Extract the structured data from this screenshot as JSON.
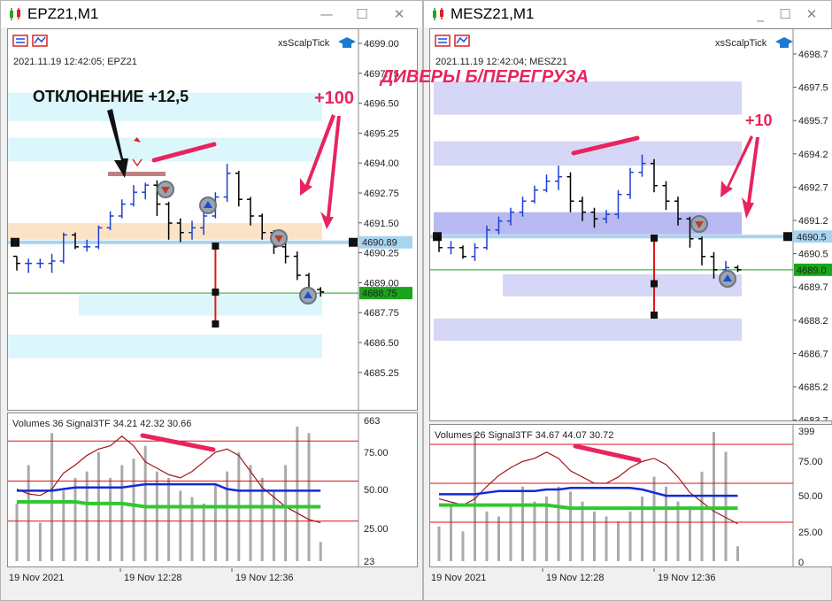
{
  "colors": {
    "bar_up": "#1f3fd1",
    "bar_down": "#000000",
    "cyan_zone": "#dcf7fb",
    "orange_zone": "#fbe3c8",
    "lavender_zone": "#d6d6f7",
    "lavender_strong": "#b9b9f2",
    "price_line": "#a8d4f0",
    "green_line": "#1aa51a",
    "annotation_magenta": "#e8245e",
    "dark_red": "#a01818",
    "signal_blue": "#1428d8",
    "signal_green": "#2fc92f",
    "level_red": "#e01010",
    "volume_gray": "#aaaaaa"
  },
  "left": {
    "title": "EPZ21,M1",
    "indicator_name": "xsScalpTick",
    "info": "2021.11.19 12:42:05; EPZ21",
    "price_ticks": [
      "4699.00",
      "4697.75",
      "4696.50",
      "4695.25",
      "4694.00",
      "4692.75",
      "4691.50",
      "4690.25",
      "4689.00",
      "4687.75",
      "4686.50",
      "4685.25"
    ],
    "price_min": 4684.5,
    "price_max": 4699.5,
    "current_price_label": "4690.89",
    "current_price": 4690.89,
    "green_price_label": "4688.75",
    "green_price": 4688.75,
    "sub_header": "Volumes 36 Signal3TF 34.21 42.32 30.66",
    "sub_ticks": [
      "663",
      "75.00",
      "50.00",
      "25.00",
      "23"
    ],
    "time_labels": [
      "19 Nov 2021",
      "19 Nov 12:28",
      "19 Nov 12:36"
    ],
    "bars_ohlc": [
      [
        4690.3,
        4690.3,
        4689.7,
        4690.0
      ],
      [
        4690.0,
        4690.2,
        4689.6,
        4690.0
      ],
      [
        4690.0,
        4690.2,
        4689.8,
        4690.0
      ],
      [
        4690.0,
        4690.4,
        4689.6,
        4690.1
      ],
      [
        4690.1,
        4691.3,
        4690.0,
        4691.2
      ],
      [
        4691.2,
        4691.3,
        4690.6,
        4690.7
      ],
      [
        4690.7,
        4691.0,
        4690.5,
        4690.7
      ],
      [
        4690.7,
        4691.6,
        4690.6,
        4691.5
      ],
      [
        4691.5,
        4692.2,
        4691.4,
        4692.0
      ],
      [
        4692.0,
        4692.7,
        4691.9,
        4692.5
      ],
      [
        4692.5,
        4693.3,
        4692.4,
        4693.0
      ],
      [
        4693.0,
        4693.4,
        4692.7,
        4693.3
      ],
      [
        4693.3,
        4693.5,
        4692.0,
        4692.5
      ],
      [
        4692.5,
        4692.6,
        4691.0,
        4691.7
      ],
      [
        4691.7,
        4691.9,
        4690.9,
        4691.3
      ],
      [
        4691.3,
        4691.8,
        4691.0,
        4691.5
      ],
      [
        4691.5,
        4692.2,
        4691.2,
        4692.0
      ],
      [
        4692.0,
        4693.0,
        4691.9,
        4692.8
      ],
      [
        4692.8,
        4694.2,
        4692.6,
        4693.8
      ],
      [
        4693.8,
        4693.9,
        4692.4,
        4692.7
      ],
      [
        4692.7,
        4692.8,
        4691.6,
        4692.0
      ],
      [
        4692.0,
        4692.1,
        4691.0,
        4691.3
      ],
      [
        4691.3,
        4691.4,
        4690.4,
        4690.7
      ],
      [
        4690.7,
        4690.9,
        4690.0,
        4690.3
      ],
      [
        4690.3,
        4690.5,
        4689.3,
        4689.5
      ],
      [
        4689.5,
        4689.6,
        4688.7,
        4688.9
      ],
      [
        4688.9,
        4689.0,
        4688.6,
        4688.8
      ]
    ],
    "volumes": [
      18,
      30,
      12,
      40,
      22,
      26,
      28,
      34,
      26,
      30,
      32,
      36,
      28,
      26,
      22,
      20,
      18,
      24,
      28,
      34,
      30,
      26,
      22,
      30,
      42,
      40,
      6
    ],
    "signal_red": [
      45,
      42,
      41,
      45,
      55,
      60,
      66,
      70,
      72,
      78,
      72,
      62,
      58,
      54,
      52,
      56,
      62,
      68,
      70,
      66,
      56,
      46,
      40,
      34,
      30,
      26,
      24
    ],
    "signal_blue": [
      44,
      44,
      44,
      44,
      45,
      46,
      46,
      46,
      46,
      46,
      47,
      48,
      48,
      48,
      48,
      48,
      48,
      48,
      45,
      44,
      44,
      44,
      44,
      44,
      44,
      44,
      44
    ],
    "signal_green": [
      37,
      37,
      37,
      37,
      37,
      37,
      36,
      36,
      36,
      36,
      35,
      34,
      34,
      34,
      34,
      34,
      34,
      34,
      34,
      34,
      34,
      34,
      34,
      34,
      34,
      34,
      34
    ],
    "annotations": {
      "deviation": "ОТКЛОНЕНИЕ  +12,5",
      "plus100": "+100"
    }
  },
  "right": {
    "title": "MESZ21,M1",
    "indicator_name": "xsScalpTick",
    "info": "2021.11.19 12:42:04; MESZ21",
    "price_ticks": [
      "4698.7",
      "4697.5",
      "4695.7",
      "4694.2",
      "4692.7",
      "4691.2",
      "4690.5",
      "4689.7",
      "4688.2",
      "4686.7",
      "4685.2",
      "4683.7"
    ],
    "price_min": 4683.0,
    "price_max": 4699.3,
    "current_price_label": "4690.5",
    "current_price": 4690.5,
    "green_price_label": "4689.0",
    "green_price": 4689.0,
    "sub_header": "Volumes 26 Signal3TF 34.67 44.07 30.72",
    "sub_ticks": [
      "399",
      "75.00",
      "50.00",
      "25.00",
      "0"
    ],
    "time_labels": [
      "19 Nov 2021",
      "19 Nov 12:28",
      "19 Nov 12:36"
    ],
    "bars_ohlc": [
      [
        4690.4,
        4690.5,
        4689.8,
        4690.0
      ],
      [
        4690.0,
        4690.3,
        4689.7,
        4690.0
      ],
      [
        4690.0,
        4690.1,
        4689.5,
        4689.6
      ],
      [
        4689.6,
        4690.2,
        4689.4,
        4690.0
      ],
      [
        4690.0,
        4691.0,
        4689.9,
        4690.8
      ],
      [
        4690.8,
        4691.4,
        4690.6,
        4691.2
      ],
      [
        4691.2,
        4691.8,
        4691.0,
        4691.6
      ],
      [
        4691.6,
        4692.3,
        4691.4,
        4692.1
      ],
      [
        4692.1,
        4692.8,
        4692.0,
        4692.6
      ],
      [
        4692.6,
        4693.3,
        4692.5,
        4693.0
      ],
      [
        4693.0,
        4693.7,
        4692.6,
        4693.2
      ],
      [
        4693.2,
        4693.4,
        4691.6,
        4692.1
      ],
      [
        4692.1,
        4692.3,
        4691.2,
        4691.6
      ],
      [
        4691.6,
        4691.8,
        4690.9,
        4691.3
      ],
      [
        4691.3,
        4691.7,
        4691.1,
        4691.5
      ],
      [
        4691.5,
        4692.6,
        4691.3,
        4692.4
      ],
      [
        4692.4,
        4693.6,
        4692.2,
        4693.4
      ],
      [
        4693.4,
        4694.2,
        4693.2,
        4693.8
      ],
      [
        4693.8,
        4694.0,
        4692.5,
        4692.8
      ],
      [
        4692.8,
        4693.0,
        4691.7,
        4692.1
      ],
      [
        4692.1,
        4692.3,
        4691.0,
        4691.3
      ],
      [
        4691.3,
        4691.4,
        4690.0,
        4690.4
      ],
      [
        4690.4,
        4690.5,
        4689.2,
        4689.6
      ],
      [
        4689.6,
        4689.8,
        4688.6,
        4689.0
      ],
      [
        4689.0,
        4689.4,
        4688.8,
        4689.1
      ],
      [
        4689.1,
        4689.2,
        4688.9,
        4689.0
      ]
    ],
    "volumes": [
      14,
      22,
      12,
      52,
      20,
      18,
      22,
      30,
      24,
      26,
      30,
      28,
      24,
      20,
      18,
      16,
      20,
      26,
      34,
      30,
      24,
      22,
      36,
      52,
      44,
      6
    ],
    "signal_red": [
      40,
      38,
      36,
      40,
      48,
      55,
      60,
      64,
      66,
      70,
      66,
      58,
      54,
      50,
      50,
      54,
      60,
      64,
      66,
      62,
      54,
      44,
      38,
      32,
      28,
      24
    ],
    "signal_blue": [
      43,
      43,
      43,
      43,
      44,
      45,
      45,
      45,
      45,
      46,
      46,
      47,
      47,
      47,
      47,
      47,
      47,
      46,
      44,
      42,
      42,
      42,
      42,
      42,
      42,
      42
    ],
    "signal_green": [
      36,
      36,
      36,
      36,
      36,
      36,
      36,
      36,
      36,
      36,
      35,
      34,
      34,
      34,
      34,
      34,
      34,
      34,
      34,
      34,
      34,
      34,
      34,
      34,
      34,
      34
    ],
    "annotations": {
      "divers": "ДИВЕРЫ Б/ПЕРЕГРУЗА",
      "plus10": "+10"
    }
  }
}
